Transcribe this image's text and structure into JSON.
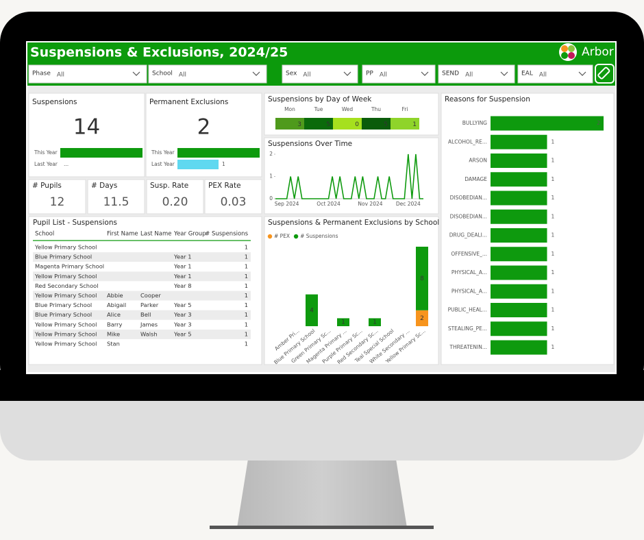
{
  "header": {
    "title": "Suspensions & Exclusions, 2024/25",
    "brand": "Arbor"
  },
  "filters": [
    {
      "label": "Phase",
      "value": "All"
    },
    {
      "label": "School",
      "value": "All"
    },
    {
      "label": "Sex",
      "value": "All"
    },
    {
      "label": "PP",
      "value": "All"
    },
    {
      "label": "SEND",
      "value": "All"
    },
    {
      "label": "EAL",
      "value": "All"
    }
  ],
  "kpi_cards": [
    {
      "title": "Suspensions",
      "value": 14,
      "color": "#f7941d",
      "comparison": {
        "type": "bar",
        "categories": [
          "This Year",
          "Last Year"
        ],
        "values": [
          14,
          null
        ],
        "value_labels": [
          null,
          "..."
        ],
        "colors": [
          "#0e9a0e",
          "#5fd8f0"
        ],
        "xlim": [
          0,
          14
        ]
      }
    },
    {
      "title": "Permanent Exclusions",
      "value": 2,
      "color": "#f7941d",
      "comparison": {
        "type": "bar",
        "categories": [
          "This Year",
          "Last Year"
        ],
        "values": [
          2,
          1
        ],
        "value_labels": [
          null,
          "1"
        ],
        "colors": [
          "#0e9a0e",
          "#5fd8f0"
        ],
        "xlim": [
          0,
          2
        ]
      }
    }
  ],
  "stat_cards": [
    {
      "title": "# Pupils",
      "value": 12
    },
    {
      "title": "# Days",
      "value": 11.5
    },
    {
      "title": "Susp. Rate",
      "value": {
        "value": 0.2,
        "label": "0.20"
      }
    },
    {
      "title": "PEX Rate",
      "value": 0.03
    }
  ],
  "pupil_list": {
    "title": "Pupil List - Suspensions",
    "columns": [
      "School",
      "First Name",
      "Last Name",
      "Year Group",
      "# Suspensions"
    ],
    "rows": [
      [
        "Yellow Primary School",
        null,
        null,
        null,
        1
      ],
      [
        "Blue Primary School",
        null,
        null,
        "Year 1",
        1
      ],
      [
        "Magenta Primary School",
        null,
        null,
        "Year 1",
        1
      ],
      [
        "Yellow Primary School",
        null,
        null,
        "Year 1",
        1
      ],
      [
        "Red Secondary School",
        null,
        null,
        "Year 8",
        1
      ],
      [
        "Yellow Primary School",
        "Abbie",
        "Cooper",
        null,
        1
      ],
      [
        "Blue Primary School",
        "Abigail",
        "Parker",
        "Year 5",
        1
      ],
      [
        "Blue Primary School",
        "Alice",
        "Bell",
        "Year 3",
        1
      ],
      [
        "Yellow Primary School",
        "Barry",
        "James",
        "Year 3",
        1
      ],
      [
        "Yellow Primary School",
        "Mike",
        "Walsh",
        "Year 5",
        1
      ],
      [
        "Yellow Primary School",
        "Stan",
        null,
        null,
        1
      ]
    ]
  },
  "charts": {
    "day_of_week": {
      "type": "heatmap",
      "title": "Suspensions by Day of Week",
      "categories": [
        "Mon",
        "Tue",
        "Wed",
        "Thu",
        "Fri"
      ],
      "values": [
        3,
        5,
        0,
        5,
        1
      ],
      "colors": [
        "#4f9a1c",
        "#0b6a0b",
        "#a6e01e",
        "#0b5c0b",
        "#8fd42a"
      ]
    },
    "over_time": {
      "type": "line",
      "title": "Suspensions Over Time",
      "categories": [
        null,
        null,
        null,
        "Sep 2024",
        null,
        null,
        null,
        null,
        null,
        null,
        null,
        null,
        null,
        null,
        "Oct 2024",
        null,
        null,
        null,
        null,
        null,
        null,
        null,
        null,
        null,
        null,
        "Nov 2024",
        null,
        null,
        null,
        null,
        null,
        null,
        null,
        null,
        null,
        "Dec 2024",
        null,
        null,
        null,
        null
      ],
      "values": [
        0,
        0,
        0,
        0,
        1,
        0,
        1,
        0,
        0,
        0,
        0,
        0,
        0,
        0,
        0,
        1,
        0,
        1,
        0,
        0,
        0,
        1,
        0,
        1,
        0,
        0,
        0,
        1,
        0,
        0,
        1,
        0,
        0,
        0,
        0,
        2,
        0,
        2,
        0,
        0
      ],
      "color": "#0e9a0e",
      "ylim": [
        0,
        2
      ],
      "yticks": [
        0,
        1,
        2
      ]
    },
    "by_school": {
      "type": "stacked_bar",
      "title": "Suspensions & Permanent Exclusions by School",
      "categories": [
        "Amber Pri...",
        "Blue Primary School",
        "Green Primary Sc...",
        "Magenta Primary ...",
        "Purple Primary Sc...",
        "Red Secondary Sc...",
        "Teal Special School",
        "White Secondary ...",
        "Yellow Primary Sc..."
      ],
      "series": [
        {
          "name": "# PEX",
          "color": "#f7941d",
          "values": [
            null,
            null,
            null,
            null,
            null,
            null,
            null,
            null,
            2
          ]
        },
        {
          "name": "# Suspensions",
          "color": "#0e9a0e",
          "values": [
            null,
            4,
            null,
            1,
            null,
            1,
            null,
            null,
            8
          ]
        }
      ],
      "ylim": [
        0,
        10
      ]
    },
    "reasons": {
      "type": "hbar",
      "title": "Reasons for Suspension",
      "categories": [
        "BULLYING",
        "ALCOHOL_RE...",
        "ARSON",
        "DAMAGE",
        "DISOBEDIAN...",
        "DISOBEDIAN...",
        "DRUG_DEALI...",
        "OFFENSIVE_...",
        "PHYSICAL_A...",
        "PHYSICAL_A...",
        "PUBLIC_HEAL...",
        "STEALING_PE...",
        "THREATENIN..."
      ],
      "values": [
        2,
        1,
        1,
        1,
        1,
        1,
        1,
        1,
        1,
        1,
        1,
        1,
        1
      ],
      "color": "#0e9a0e",
      "xlim": [
        0,
        2
      ]
    }
  }
}
